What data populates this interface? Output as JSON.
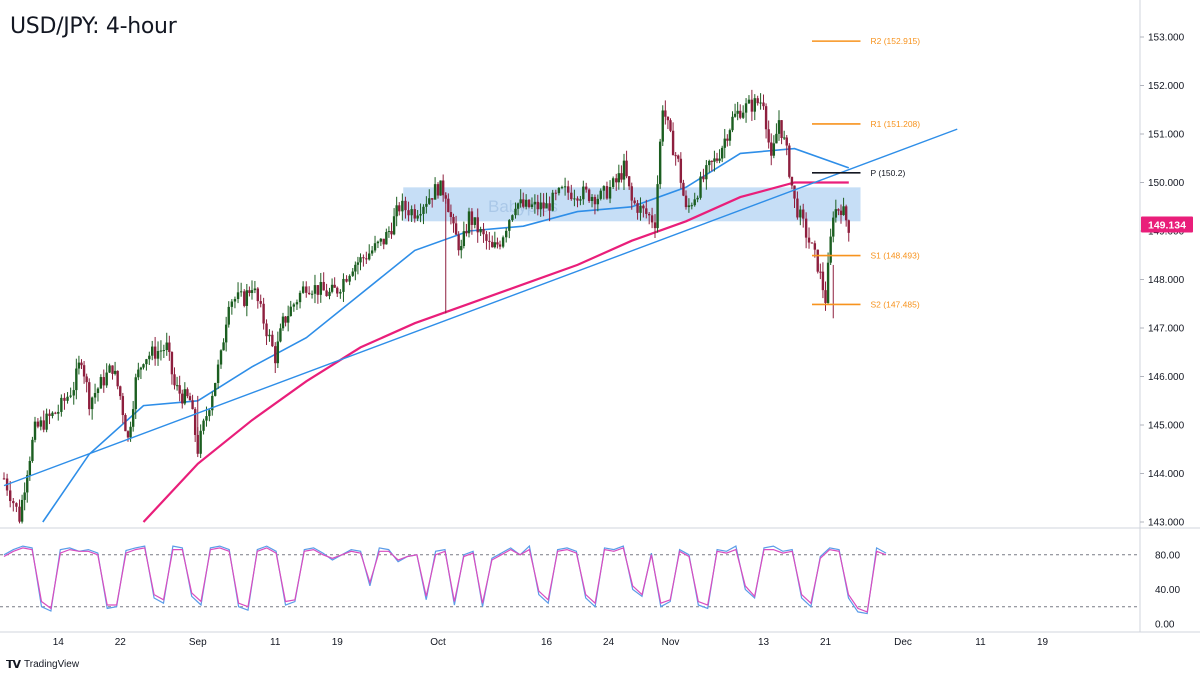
{
  "title": "USD/JPY: 4-hour",
  "watermark": "Babypips",
  "brand": {
    "name": "TradingView",
    "icon": "tradingview-logo-icon"
  },
  "colors": {
    "up": "#1b5e20",
    "down": "#8e1f3e",
    "ma_fast": "#2e8ee8",
    "ma_slow": "#e91e7a",
    "trendline": "#2e8ee8",
    "pivot_levels": "#f7931e",
    "pivot_line": "#131722",
    "zone": "#bcd8f5",
    "stoch_k": "#5b9ce8",
    "stoch_d": "#d94dc0",
    "price_tag": "#e91e7a"
  },
  "chart_data": [
    {
      "type": "candlestick",
      "title": "USD/JPY: 4-hour",
      "x_tick_labels": [
        "14",
        "22",
        "Sep",
        "11",
        "19",
        "Oct",
        "16",
        "24",
        "Nov",
        "13",
        "21",
        "Dec",
        "11",
        "19"
      ],
      "y_ticks": [
        "153.000",
        "152.000",
        "151.000",
        "150.000",
        "149.000",
        "148.000",
        "147.000",
        "146.000",
        "145.000",
        "144.000",
        "143.000"
      ],
      "ylim": [
        142.8,
        153.2
      ],
      "last_price": "149.134",
      "pivot_levels": [
        {
          "label": "R2 (152.915)",
          "value": 152.915
        },
        {
          "label": "R1 (151.208)",
          "value": 151.208
        },
        {
          "label": "P (150.2)",
          "value": 150.2
        },
        {
          "label": "S1 (148.493)",
          "value": 148.493
        },
        {
          "label": "S2 (147.485)",
          "value": 147.485
        }
      ],
      "resistance_zone": [
        149.2,
        149.9
      ],
      "trendline": {
        "from": [
          "2023-08-07",
          143.75
        ],
        "to": [
          "2023-12-08",
          151.1
        ]
      },
      "price_path": [
        [
          "2023-08-07",
          143.9
        ],
        [
          "2023-08-09",
          143.1
        ],
        [
          "2023-08-10",
          144.1
        ],
        [
          "2023-08-11",
          144.9
        ],
        [
          "2023-08-14",
          145.3
        ],
        [
          "2023-08-16",
          145.8
        ],
        [
          "2023-08-17",
          146.4
        ],
        [
          "2023-08-18",
          145.5
        ],
        [
          "2023-08-21",
          146.2
        ],
        [
          "2023-08-22",
          145.6
        ],
        [
          "2023-08-23",
          144.7
        ],
        [
          "2023-08-24",
          145.9
        ],
        [
          "2023-08-25",
          146.4
        ],
        [
          "2023-08-28",
          146.6
        ],
        [
          "2023-08-29",
          145.8
        ],
        [
          "2023-08-30",
          145.6
        ],
        [
          "2023-08-31",
          145.5
        ],
        [
          "2023-09-01",
          144.5
        ],
        [
          "2023-09-04",
          146.4
        ],
        [
          "2023-09-05",
          147.6
        ],
        [
          "2023-09-07",
          147.6
        ],
        [
          "2023-09-08",
          147.9
        ],
        [
          "2023-09-11",
          146.4
        ],
        [
          "2023-09-12",
          147.1
        ],
        [
          "2023-09-13",
          147.4
        ],
        [
          "2023-09-15",
          147.9
        ],
        [
          "2023-09-18",
          147.7
        ],
        [
          "2023-09-19",
          147.8
        ],
        [
          "2023-09-21",
          148.3
        ],
        [
          "2023-09-22",
          148.4
        ],
        [
          "2023-09-25",
          148.8
        ],
        [
          "2023-09-26",
          149.1
        ],
        [
          "2023-09-27",
          149.5
        ],
        [
          "2023-09-29",
          149.4
        ],
        [
          "2023-10-02",
          149.9
        ],
        [
          "2023-10-03",
          149.8
        ],
        [
          "2023-10-04",
          149.0
        ],
        [
          "2023-10-05",
          148.6
        ],
        [
          "2023-10-06",
          149.3
        ],
        [
          "2023-10-09",
          148.6
        ],
        [
          "2023-10-10",
          148.8
        ],
        [
          "2023-10-12",
          149.6
        ],
        [
          "2023-10-13",
          149.5
        ],
        [
          "2023-10-16",
          149.5
        ],
        [
          "2023-10-18",
          149.8
        ],
        [
          "2023-10-20",
          149.8
        ],
        [
          "2023-10-23",
          149.7
        ],
        [
          "2023-10-25",
          150.0
        ],
        [
          "2023-10-26",
          150.3
        ],
        [
          "2023-10-27",
          149.6
        ],
        [
          "2023-10-30",
          149.2
        ],
        [
          "2023-10-31",
          151.6
        ],
        [
          "2023-11-01",
          150.9
        ],
        [
          "2023-11-02",
          150.4
        ],
        [
          "2023-11-03",
          149.4
        ],
        [
          "2023-11-06",
          150.3
        ],
        [
          "2023-11-07",
          150.5
        ],
        [
          "2023-11-08",
          150.9
        ],
        [
          "2023-11-09",
          151.3
        ],
        [
          "2023-11-10",
          151.5
        ],
        [
          "2023-11-13",
          151.7
        ],
        [
          "2023-11-14",
          150.4
        ],
        [
          "2023-11-15",
          151.3
        ],
        [
          "2023-11-16",
          150.6
        ],
        [
          "2023-11-17",
          149.6
        ],
        [
          "2023-11-20",
          148.3
        ],
        [
          "2023-11-21",
          147.6
        ],
        [
          "2023-11-22",
          149.4
        ],
        [
          "2023-11-23",
          149.5
        ],
        [
          "2023-11-24",
          149.1
        ]
      ],
      "ma_fast": [
        [
          "2023-08-12",
          143.0
        ],
        [
          "2023-08-18",
          144.4
        ],
        [
          "2023-08-25",
          145.4
        ],
        [
          "2023-09-01",
          145.5
        ],
        [
          "2023-09-08",
          146.2
        ],
        [
          "2023-09-15",
          146.8
        ],
        [
          "2023-09-22",
          147.7
        ],
        [
          "2023-09-29",
          148.6
        ],
        [
          "2023-10-06",
          149.0
        ],
        [
          "2023-10-13",
          149.1
        ],
        [
          "2023-10-20",
          149.4
        ],
        [
          "2023-10-27",
          149.5
        ],
        [
          "2023-11-03",
          149.9
        ],
        [
          "2023-11-10",
          150.6
        ],
        [
          "2023-11-17",
          150.7
        ],
        [
          "2023-11-24",
          150.3
        ]
      ],
      "ma_slow": [
        [
          "2023-08-25",
          143.0
        ],
        [
          "2023-09-01",
          144.2
        ],
        [
          "2023-09-08",
          145.1
        ],
        [
          "2023-09-15",
          145.9
        ],
        [
          "2023-09-22",
          146.6
        ],
        [
          "2023-09-29",
          147.1
        ],
        [
          "2023-10-06",
          147.5
        ],
        [
          "2023-10-13",
          147.9
        ],
        [
          "2023-10-20",
          148.3
        ],
        [
          "2023-10-27",
          148.8
        ],
        [
          "2023-11-03",
          149.2
        ],
        [
          "2023-11-10",
          149.7
        ],
        [
          "2023-11-17",
          150.0
        ],
        [
          "2023-11-24",
          150.0
        ]
      ]
    },
    {
      "type": "line",
      "y_ticks": [
        "80.00",
        "40.00",
        "0.00"
      ],
      "ylim": [
        0,
        100
      ],
      "reference_lines": [
        80,
        20
      ],
      "series": [
        {
          "values": [
            80,
            86,
            90,
            88,
            20,
            15,
            86,
            88,
            84,
            86,
            82,
            18,
            20,
            85,
            88,
            90,
            30,
            24,
            90,
            88,
            32,
            22,
            88,
            90,
            86,
            20,
            16,
            86,
            90,
            84,
            22,
            26,
            86,
            88,
            82,
            74,
            80,
            86,
            84,
            44,
            88,
            86,
            72,
            78,
            80,
            28,
            84,
            86,
            22,
            80,
            84,
            20,
            76,
            82,
            88,
            80,
            90,
            34,
            24,
            86,
            88,
            84,
            30,
            20,
            88,
            86,
            90,
            40,
            32,
            82,
            20,
            26,
            86,
            80,
            22,
            18,
            86,
            84,
            90,
            40,
            30,
            88,
            90,
            84,
            86,
            30,
            20,
            78,
            88,
            86,
            30,
            14,
            12,
            88,
            82
          ]
        },
        {
          "values": [
            78,
            84,
            88,
            86,
            26,
            18,
            82,
            86,
            84,
            84,
            80,
            22,
            22,
            82,
            86,
            88,
            34,
            28,
            86,
            86,
            36,
            26,
            86,
            88,
            84,
            24,
            20,
            84,
            88,
            82,
            26,
            28,
            84,
            86,
            80,
            76,
            80,
            84,
            82,
            48,
            84,
            84,
            74,
            78,
            80,
            32,
            80,
            84,
            26,
            78,
            82,
            24,
            74,
            80,
            86,
            80,
            86,
            38,
            28,
            84,
            86,
            82,
            34,
            24,
            86,
            84,
            88,
            44,
            34,
            80,
            24,
            28,
            84,
            78,
            26,
            22,
            84,
            82,
            86,
            44,
            32,
            86,
            86,
            82,
            84,
            34,
            24,
            76,
            86,
            84,
            34,
            18,
            14,
            84,
            80
          ]
        }
      ]
    }
  ]
}
